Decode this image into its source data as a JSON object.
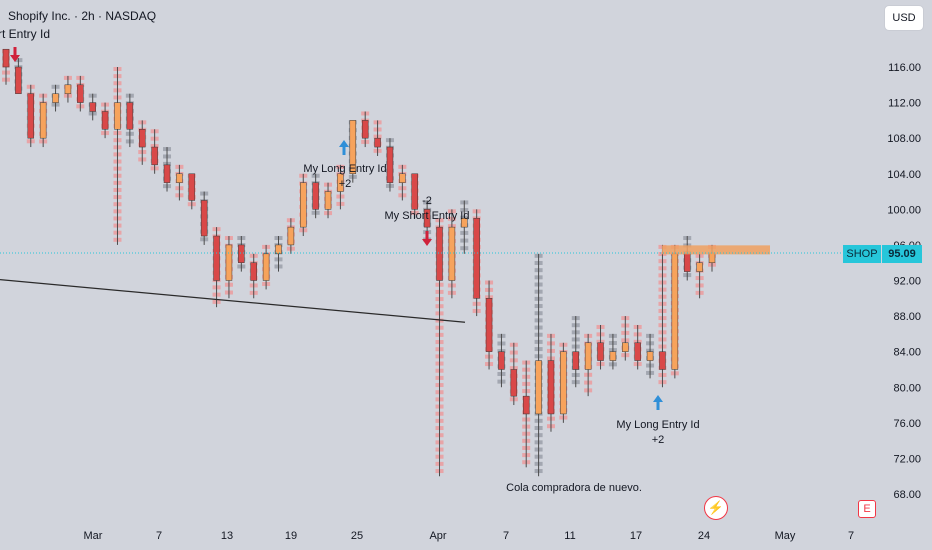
{
  "header": {
    "symbol_title": "Shopify Inc. · 2h · NASDAQ",
    "strategy_label": "rt Entry Id"
  },
  "currency_button": "USD",
  "price_scale": {
    "ticks": [
      "116.00",
      "112.00",
      "108.00",
      "104.00",
      "100.00",
      "96.00",
      "92.00",
      "88.00",
      "84.00",
      "80.00",
      "76.00",
      "72.00",
      "68.00"
    ]
  },
  "current_price": {
    "ticker": "SHOP",
    "value": "95.09",
    "value_num": 95.09
  },
  "time_axis": {
    "ticks": [
      "Mar",
      "7",
      "13",
      "19",
      "25",
      "Apr",
      "7",
      "11",
      "17",
      "24",
      "May",
      "7"
    ]
  },
  "annotations": {
    "long_entry_1": "My Long Entry Id",
    "long_entry_1_qty": "+2",
    "short_entry_1": "My Short Entry Id",
    "short_entry_1_qty": "-2",
    "long_entry_2": "My Long Entry Id",
    "long_entry_2_qty": "+2",
    "note": "Cola compradora de nuevo."
  },
  "colors": {
    "background": "#d1d4dc",
    "up_candle": "#f7a35c",
    "down_candle": "#d94848",
    "wick": "#4a4a4a",
    "text_overlay_red": "#f58a8a",
    "text_overlay_gray": "#8b8f99",
    "long_arrow": "#2f8fd8",
    "short_arrow": "#d0213a",
    "price_line": "#26c6da",
    "resistance_box": "#f0a060",
    "trend_line": "#2a2a2a"
  },
  "chart_data": {
    "type": "candlestick",
    "title": "Shopify Inc. · 2h · NASDAQ",
    "ylim": [
      66,
      120
    ],
    "x_labels": [
      "Mar",
      "7",
      "13",
      "19",
      "25",
      "Apr",
      "7",
      "11",
      "17",
      "24",
      "May",
      "7"
    ],
    "series": [
      {
        "name": "SHOP",
        "ohlc": [
          [
            118,
            118,
            114,
            116
          ],
          [
            116,
            117,
            113,
            113
          ],
          [
            113,
            114,
            107,
            108
          ],
          [
            108,
            113,
            107,
            112
          ],
          [
            112,
            114,
            111,
            113
          ],
          [
            113,
            115,
            112,
            114
          ],
          [
            114,
            115,
            111,
            112
          ],
          [
            112,
            113,
            110,
            111
          ],
          [
            111,
            112,
            108,
            109
          ],
          [
            109,
            116,
            96,
            112
          ],
          [
            112,
            113,
            107,
            109
          ],
          [
            109,
            110,
            105,
            107
          ],
          [
            107,
            109,
            104,
            105
          ],
          [
            105,
            107,
            102,
            103
          ],
          [
            103,
            105,
            101,
            104
          ],
          [
            104,
            104,
            100,
            101
          ],
          [
            101,
            102,
            96,
            97
          ],
          [
            97,
            98,
            89,
            92
          ],
          [
            92,
            97,
            90,
            96
          ],
          [
            96,
            97,
            93,
            94
          ],
          [
            94,
            95,
            90,
            92
          ],
          [
            92,
            96,
            91,
            95
          ],
          [
            95,
            97,
            93,
            96
          ],
          [
            96,
            99,
            95,
            98
          ],
          [
            98,
            104,
            97,
            103
          ],
          [
            103,
            104,
            99,
            100
          ],
          [
            100,
            103,
            99,
            102
          ],
          [
            102,
            105,
            100,
            104
          ],
          [
            104,
            110,
            103,
            110
          ],
          [
            110,
            111,
            107,
            108
          ],
          [
            108,
            110,
            106,
            107
          ],
          [
            107,
            108,
            102,
            103
          ],
          [
            103,
            105,
            101,
            104
          ],
          [
            104,
            104,
            99,
            100
          ],
          [
            100,
            101,
            96,
            98
          ],
          [
            98,
            99,
            70,
            92
          ],
          [
            92,
            100,
            90,
            98
          ],
          [
            98,
            101,
            95,
            99
          ],
          [
            99,
            100,
            88,
            90
          ],
          [
            90,
            92,
            82,
            84
          ],
          [
            84,
            86,
            80,
            82
          ],
          [
            82,
            85,
            78,
            79
          ],
          [
            79,
            83,
            71,
            77
          ],
          [
            77,
            95,
            70,
            83
          ],
          [
            83,
            86,
            75,
            77
          ],
          [
            77,
            85,
            76,
            84
          ],
          [
            84,
            88,
            80,
            82
          ],
          [
            82,
            86,
            79,
            85
          ],
          [
            85,
            87,
            82,
            83
          ],
          [
            83,
            86,
            82,
            84
          ],
          [
            84,
            88,
            83,
            85
          ],
          [
            85,
            87,
            82,
            83
          ],
          [
            83,
            86,
            81,
            84
          ],
          [
            84,
            96,
            80,
            82
          ],
          [
            82,
            96,
            81,
            95
          ],
          [
            95,
            97,
            92,
            93
          ],
          [
            93,
            95,
            90,
            94
          ],
          [
            94,
            96,
            93,
            95.09
          ]
        ]
      }
    ],
    "current_price": 95.09,
    "trend_line": {
      "from": [
        0,
        92.1
      ],
      "to": [
        57,
        87.4
      ]
    },
    "resistance_zone": [
      94.5,
      95.5
    ],
    "grid": false,
    "legend": "none"
  }
}
